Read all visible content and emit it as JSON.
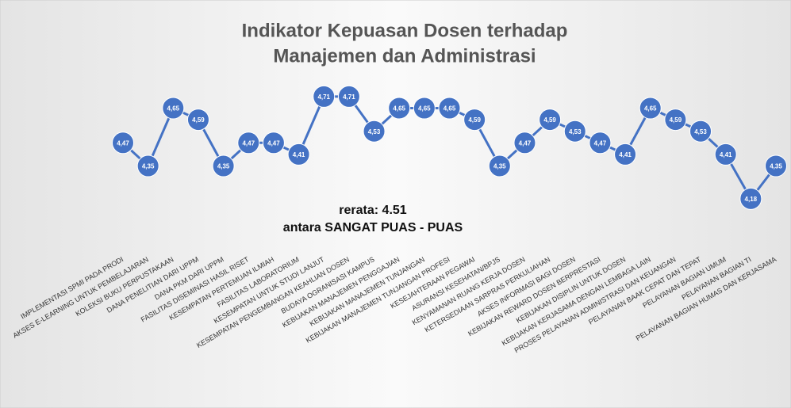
{
  "chart_data": {
    "type": "line",
    "title": [
      "Indikator Kepuasan Dosen terhadap",
      "Manajemen dan Administrasi"
    ],
    "annotations": [
      "rerata: 4.51",
      "antara SANGAT PUAS - PUAS"
    ],
    "categories": [
      "IMPLEMENTASI SPMI PADA PRODI",
      "AKSES E-LEARNING UNTUK PEMBELAJARAN",
      "KOLEKSI BUKU PERPUSTAKAAN",
      "DANA PENELITIAN DARI UPPM",
      "DANA PKM DARI UPPM",
      "FASILITAS DISEMINASI HASIL RISET",
      "KESEMPATAN  PERTEMUAN ILMIAH",
      "FASILITAS LABORATORIUM",
      "KESEMPATAN UNTUK STUDI LANJUT",
      "KESEMPATAN PENGEMBANGAN KEAHLIAN DOSEN",
      "BUDAYA OGRANISASI KAMPUS",
      "KEBIJAKAN MANAJEMEN PENGGAJIAN",
      "KEBIJAKAN MANAJEMEN TUNJANGAN",
      "KEBIJAKAN MANAJEMEN TUNJANGAN PROFESI",
      "KESEJAHTERAAN PEGAWAI",
      "ASURANSI KESEHATAN/BPJS",
      "KENYAMANAN RUANG KERJA DOSEN",
      "KETERSEDIAAN SARPRAS PERKULIAHAN",
      "AKSES INFORMASI BAGI DOSEN",
      "KEBIJAKAN REWARD DOSEN BERPRESTASI",
      "KEBIJAKAN DISIPLIN UNTUK DOSEN",
      "KEBIJAKAN KERJASAMA DENGAN LEMBAGA LAIN",
      "PROSES PELAYANAN ADMINISTRASI DAN KEUANGAN",
      "PELAYANAN BAAK CEPAT DAN TEPAT",
      "PELAYANAN BAGIAN UMUM",
      "PELAYANAN BAGIAN TI",
      "PELAYANAN BAGIAN HUMAS DAN KERJASAMA"
    ],
    "values": [
      4.47,
      4.35,
      4.65,
      4.59,
      4.35,
      4.47,
      4.47,
      4.41,
      4.71,
      4.71,
      4.53,
      4.65,
      4.65,
      4.65,
      4.59,
      4.35,
      4.47,
      4.59,
      4.53,
      4.47,
      4.41,
      4.65,
      4.59,
      4.53,
      4.41,
      4.18,
      4.35
    ],
    "value_labels": [
      "4,47",
      "4,35",
      "4,65",
      "4,59",
      "4,35",
      "4,47",
      "4,47",
      "4,41",
      "4,71",
      "4,71",
      "4,53",
      "4,65",
      "4,65",
      "4,65",
      "4,59",
      "4,35",
      "4,47",
      "4,59",
      "4,53",
      "4,47",
      "4,41",
      "4,65",
      "4,59",
      "4,53",
      "4,41",
      "4,18",
      "4,35"
    ],
    "color": "#4472c4",
    "ylim": [
      3.9,
      4.8
    ],
    "yticks": [
      3.9,
      4.0,
      4.1,
      4.2,
      4.3,
      4.4,
      4.5,
      4.6,
      4.7,
      4.8
    ],
    "grid": true
  }
}
